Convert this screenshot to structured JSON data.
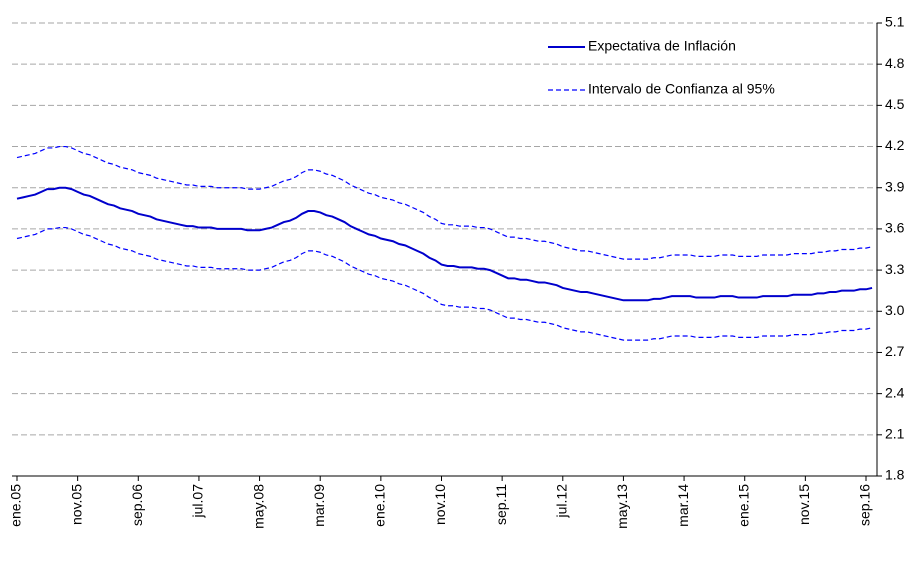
{
  "chart_data": {
    "type": "line",
    "categories": [
      "ene.05",
      null,
      null,
      null,
      null,
      null,
      null,
      null,
      null,
      null,
      "nov.05",
      null,
      null,
      null,
      null,
      null,
      null,
      null,
      null,
      null,
      "sep.06",
      null,
      null,
      null,
      null,
      null,
      null,
      null,
      null,
      null,
      "jul.07",
      null,
      null,
      null,
      null,
      null,
      null,
      null,
      null,
      null,
      "may.08",
      null,
      null,
      null,
      null,
      null,
      null,
      null,
      null,
      null,
      "mar.09",
      null,
      null,
      null,
      null,
      null,
      null,
      null,
      null,
      null,
      "ene.10",
      null,
      null,
      null,
      null,
      null,
      null,
      null,
      null,
      null,
      "nov.10",
      null,
      null,
      null,
      null,
      null,
      null,
      null,
      null,
      null,
      "sep.11",
      null,
      null,
      null,
      null,
      null,
      null,
      null,
      null,
      null,
      "jul.12",
      null,
      null,
      null,
      null,
      null,
      null,
      null,
      null,
      null,
      "may.13",
      null,
      null,
      null,
      null,
      null,
      null,
      null,
      null,
      null,
      "mar.14",
      null,
      null,
      null,
      null,
      null,
      null,
      null,
      null,
      null,
      "ene.15",
      null,
      null,
      null,
      null,
      null,
      null,
      null,
      null,
      null,
      "nov.15",
      null,
      null,
      null,
      null,
      null,
      null,
      null,
      null,
      null,
      "sep.16",
      null
    ],
    "series": [
      {
        "name": "Expectativa de Inflación",
        "color": "#0000cc",
        "line_style": "solid",
        "values": [
          3.82,
          3.83,
          3.84,
          3.85,
          3.87,
          3.89,
          3.89,
          3.9,
          3.9,
          3.89,
          3.87,
          3.85,
          3.84,
          3.82,
          3.8,
          3.78,
          3.77,
          3.75,
          3.74,
          3.73,
          3.71,
          3.7,
          3.69,
          3.67,
          3.66,
          3.65,
          3.64,
          3.63,
          3.62,
          3.62,
          3.61,
          3.61,
          3.61,
          3.6,
          3.6,
          3.6,
          3.6,
          3.6,
          3.59,
          3.59,
          3.59,
          3.6,
          3.61,
          3.63,
          3.65,
          3.66,
          3.68,
          3.71,
          3.73,
          3.73,
          3.72,
          3.7,
          3.69,
          3.67,
          3.65,
          3.62,
          3.6,
          3.58,
          3.56,
          3.55,
          3.53,
          3.52,
          3.51,
          3.49,
          3.48,
          3.46,
          3.44,
          3.42,
          3.39,
          3.37,
          3.34,
          3.33,
          3.33,
          3.32,
          3.32,
          3.32,
          3.31,
          3.31,
          3.3,
          3.28,
          3.26,
          3.24,
          3.24,
          3.23,
          3.23,
          3.22,
          3.21,
          3.21,
          3.2,
          3.19,
          3.17,
          3.16,
          3.15,
          3.14,
          3.14,
          3.13,
          3.12,
          3.11,
          3.1,
          3.09,
          3.08,
          3.08,
          3.08,
          3.08,
          3.08,
          3.09,
          3.09,
          3.1,
          3.11,
          3.11,
          3.11,
          3.11,
          3.1,
          3.1,
          3.1,
          3.1,
          3.11,
          3.11,
          3.11,
          3.1,
          3.1,
          3.1,
          3.1,
          3.11,
          3.11,
          3.11,
          3.11,
          3.11,
          3.12,
          3.12,
          3.12,
          3.12,
          3.13,
          3.13,
          3.14,
          3.14,
          3.15,
          3.15,
          3.15,
          3.16,
          3.16,
          3.17
        ]
      },
      {
        "name": "Intervalo de Confianza al 95%",
        "color": "#0000ff",
        "line_style": "dashed",
        "upper": [
          4.12,
          4.13,
          4.14,
          4.15,
          4.17,
          4.19,
          4.19,
          4.2,
          4.2,
          4.19,
          4.17,
          4.15,
          4.14,
          4.12,
          4.1,
          4.08,
          4.07,
          4.05,
          4.04,
          4.03,
          4.01,
          4.0,
          3.99,
          3.97,
          3.96,
          3.95,
          3.94,
          3.93,
          3.92,
          3.92,
          3.91,
          3.91,
          3.91,
          3.9,
          3.9,
          3.9,
          3.9,
          3.9,
          3.89,
          3.89,
          3.89,
          3.9,
          3.91,
          3.93,
          3.95,
          3.96,
          3.98,
          4.01,
          4.03,
          4.03,
          4.02,
          4.0,
          3.99,
          3.97,
          3.95,
          3.92,
          3.9,
          3.88,
          3.86,
          3.85,
          3.83,
          3.82,
          3.81,
          3.79,
          3.78,
          3.76,
          3.74,
          3.72,
          3.69,
          3.67,
          3.64,
          3.63,
          3.63,
          3.62,
          3.62,
          3.62,
          3.61,
          3.61,
          3.6,
          3.58,
          3.56,
          3.54,
          3.54,
          3.53,
          3.53,
          3.52,
          3.51,
          3.51,
          3.5,
          3.49,
          3.47,
          3.46,
          3.45,
          3.44,
          3.44,
          3.43,
          3.42,
          3.41,
          3.4,
          3.39,
          3.38,
          3.38,
          3.38,
          3.38,
          3.38,
          3.39,
          3.39,
          3.4,
          3.41,
          3.41,
          3.41,
          3.41,
          3.4,
          3.4,
          3.4,
          3.4,
          3.41,
          3.41,
          3.41,
          3.4,
          3.4,
          3.4,
          3.4,
          3.41,
          3.41,
          3.41,
          3.41,
          3.41,
          3.42,
          3.42,
          3.42,
          3.42,
          3.43,
          3.43,
          3.44,
          3.44,
          3.45,
          3.45,
          3.45,
          3.46,
          3.46,
          3.47
        ],
        "lower": [
          3.53,
          3.54,
          3.55,
          3.56,
          3.58,
          3.6,
          3.6,
          3.61,
          3.61,
          3.6,
          3.58,
          3.56,
          3.55,
          3.53,
          3.51,
          3.49,
          3.48,
          3.46,
          3.45,
          3.44,
          3.42,
          3.41,
          3.4,
          3.38,
          3.37,
          3.36,
          3.35,
          3.34,
          3.33,
          3.33,
          3.32,
          3.32,
          3.32,
          3.31,
          3.31,
          3.31,
          3.31,
          3.31,
          3.3,
          3.3,
          3.3,
          3.31,
          3.32,
          3.34,
          3.36,
          3.37,
          3.39,
          3.42,
          3.44,
          3.44,
          3.43,
          3.41,
          3.4,
          3.38,
          3.36,
          3.33,
          3.31,
          3.29,
          3.27,
          3.26,
          3.24,
          3.23,
          3.22,
          3.2,
          3.19,
          3.17,
          3.15,
          3.13,
          3.1,
          3.08,
          3.05,
          3.04,
          3.04,
          3.03,
          3.03,
          3.03,
          3.02,
          3.02,
          3.01,
          2.99,
          2.97,
          2.95,
          2.95,
          2.94,
          2.94,
          2.93,
          2.92,
          2.92,
          2.91,
          2.9,
          2.88,
          2.87,
          2.86,
          2.85,
          2.85,
          2.84,
          2.83,
          2.82,
          2.81,
          2.8,
          2.79,
          2.79,
          2.79,
          2.79,
          2.79,
          2.8,
          2.8,
          2.81,
          2.82,
          2.82,
          2.82,
          2.82,
          2.81,
          2.81,
          2.81,
          2.81,
          2.82,
          2.82,
          2.82,
          2.81,
          2.81,
          2.81,
          2.81,
          2.82,
          2.82,
          2.82,
          2.82,
          2.82,
          2.83,
          2.83,
          2.83,
          2.83,
          2.84,
          2.84,
          2.85,
          2.85,
          2.86,
          2.86,
          2.86,
          2.87,
          2.87,
          2.88
        ]
      }
    ],
    "ylim": [
      1.8,
      5.1
    ],
    "yticks": [
      1.8,
      2.1,
      2.4,
      2.7,
      {
        "value": 3,
        "label": "3.0"
      },
      3.3,
      3.6,
      3.9,
      4.2,
      4.5,
      4.8,
      5.1
    ],
    "y_axis_side": "right",
    "grid": true,
    "legend": "top-right"
  }
}
